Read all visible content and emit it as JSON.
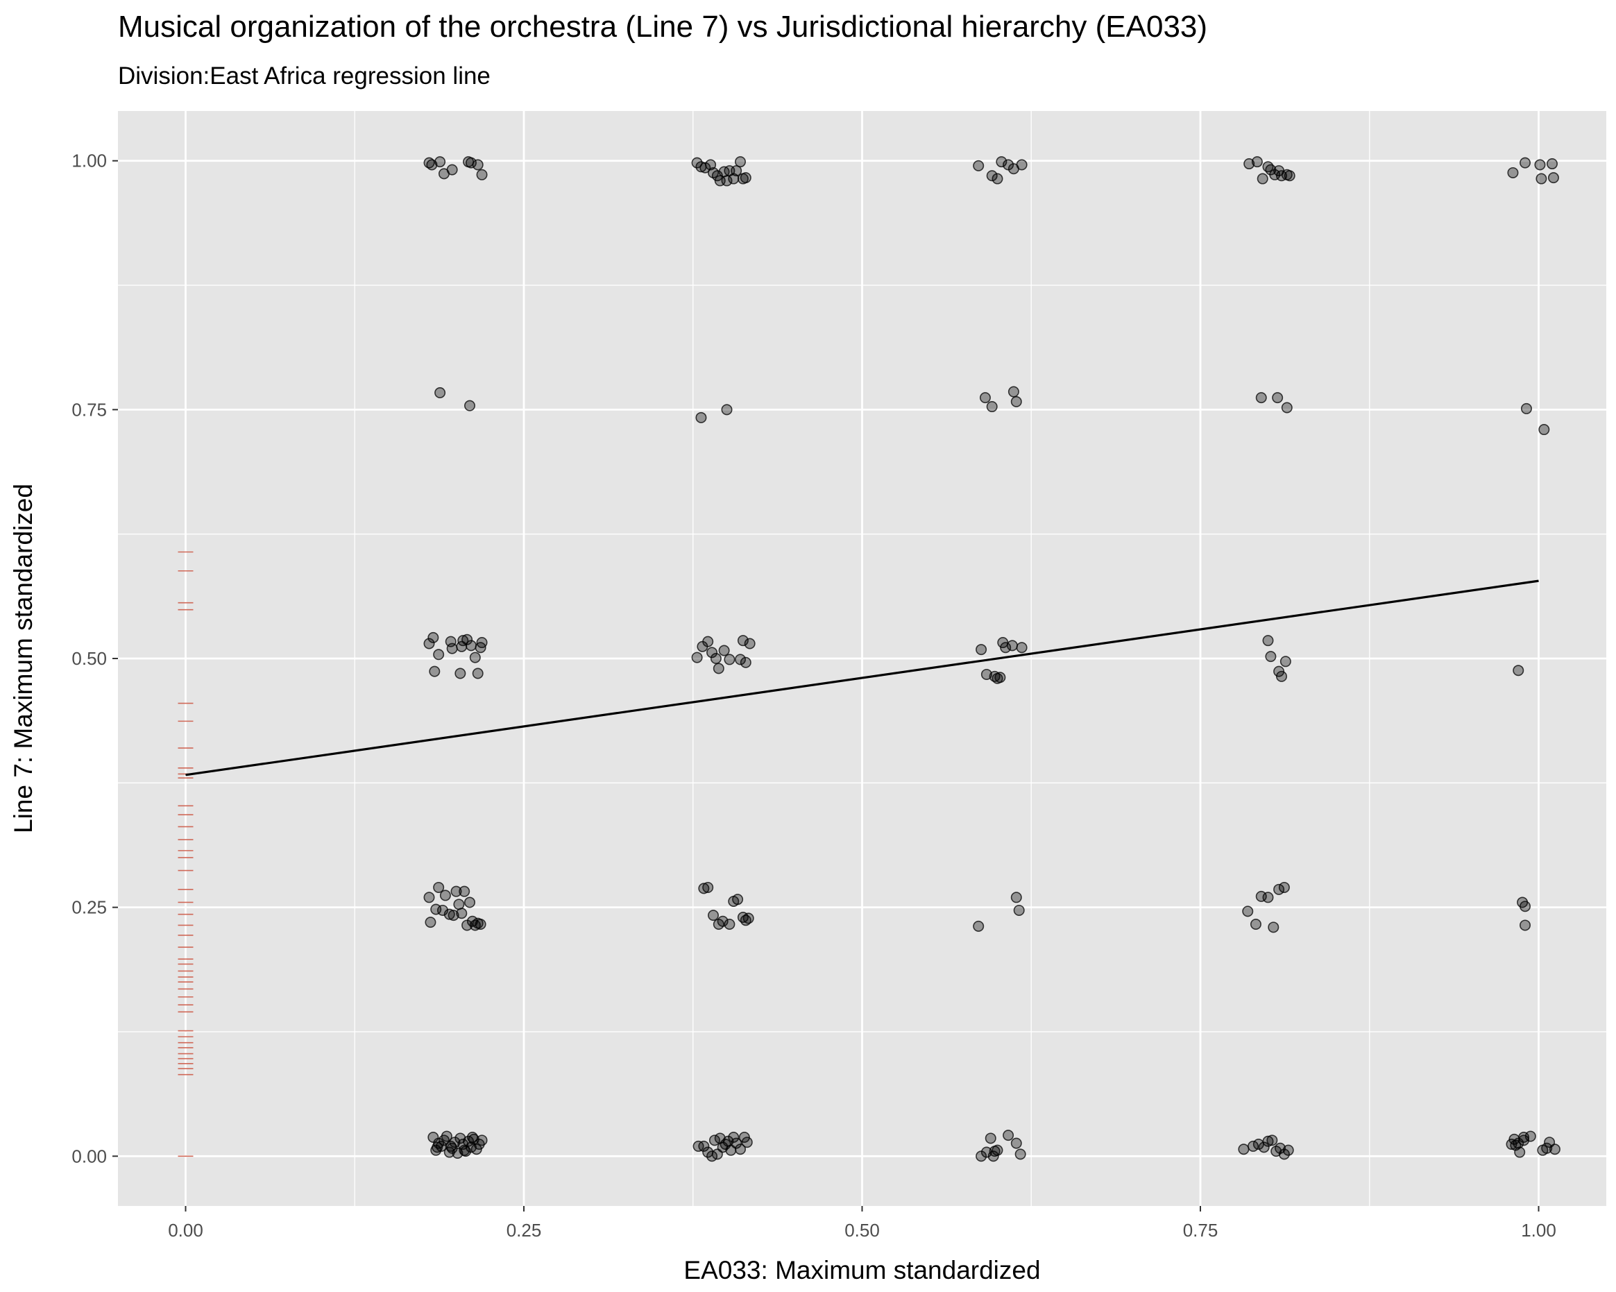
{
  "chart_data": {
    "type": "scatter",
    "title": "Musical organization of the orchestra (Line 7) vs Jurisdictional hierarchy (EA033)",
    "subtitle": "Division:East Africa regression line",
    "xlabel": "EA033: Maximum standardized",
    "ylabel": "Line 7: Maximum standardized",
    "xlim": [
      -0.05,
      1.05
    ],
    "ylim": [
      -0.05,
      1.05
    ],
    "x_ticks": [
      "0.00",
      "0.25",
      "0.50",
      "0.75",
      "1.00"
    ],
    "y_ticks": [
      "0.00",
      "0.25",
      "0.50",
      "0.75",
      "1.00"
    ],
    "grid": true,
    "colors": {
      "panel": "#e5e5e5",
      "grid": "#ffffff",
      "points": "#000000",
      "rug": "#cc5a47",
      "line": "#000000"
    },
    "regression_line": {
      "x": [
        0,
        1
      ],
      "y": [
        0.383,
        0.578
      ]
    },
    "rug_x0_y": [
      0.0,
      0.082,
      0.088,
      0.093,
      0.098,
      0.103,
      0.109,
      0.114,
      0.12,
      0.126,
      0.145,
      0.152,
      0.16,
      0.168,
      0.175,
      0.18,
      0.186,
      0.193,
      0.198,
      0.21,
      0.222,
      0.232,
      0.243,
      0.255,
      0.268,
      0.287,
      0.3,
      0.307,
      0.318,
      0.331,
      0.343,
      0.352,
      0.38,
      0.384,
      0.39,
      0.41,
      0.437,
      0.455,
      0.549,
      0.556,
      0.588,
      0.607
    ],
    "series": [
      {
        "x": [
          0.18,
          0.182,
          0.188,
          0.191,
          0.197,
          0.209,
          0.211,
          0.216,
          0.219,
          0.188,
          0.21,
          0.18,
          0.183,
          0.187,
          0.184,
          0.196,
          0.197,
          0.204,
          0.203,
          0.205,
          0.208,
          0.211,
          0.214,
          0.216,
          0.218,
          0.219,
          0.18,
          0.181,
          0.185,
          0.187,
          0.19,
          0.192,
          0.195,
          0.198,
          0.2,
          0.202,
          0.204,
          0.206,
          0.208,
          0.21,
          0.212,
          0.214,
          0.216,
          0.218,
          0.183,
          0.185,
          0.187,
          0.189,
          0.191,
          0.193,
          0.195,
          0.197,
          0.199,
          0.201,
          0.203,
          0.205,
          0.207,
          0.209,
          0.211,
          0.213,
          0.215,
          0.217,
          0.219,
          0.186,
          0.196,
          0.206,
          0.212,
          0.378,
          0.381,
          0.384,
          0.388,
          0.39,
          0.393,
          0.395,
          0.398,
          0.4,
          0.402,
          0.405,
          0.407,
          0.41,
          0.412,
          0.414,
          0.381,
          0.4,
          0.378,
          0.382,
          0.386,
          0.389,
          0.392,
          0.394,
          0.398,
          0.402,
          0.41,
          0.412,
          0.414,
          0.417,
          0.383,
          0.386,
          0.39,
          0.394,
          0.397,
          0.402,
          0.405,
          0.408,
          0.412,
          0.414,
          0.416,
          0.379,
          0.383,
          0.386,
          0.389,
          0.391,
          0.393,
          0.395,
          0.397,
          0.399,
          0.401,
          0.403,
          0.405,
          0.407,
          0.41,
          0.413,
          0.415,
          0.586,
          0.596,
          0.6,
          0.603,
          0.608,
          0.612,
          0.618,
          0.591,
          0.596,
          0.612,
          0.614,
          0.588,
          0.6,
          0.606,
          0.611,
          0.618,
          0.592,
          0.598,
          0.602,
          0.604,
          0.586,
          0.614,
          0.616,
          0.588,
          0.592,
          0.595,
          0.598,
          0.6,
          0.608,
          0.614,
          0.617,
          0.597,
          0.786,
          0.792,
          0.796,
          0.8,
          0.802,
          0.805,
          0.808,
          0.81,
          0.814,
          0.816,
          0.795,
          0.807,
          0.814,
          0.8,
          0.802,
          0.808,
          0.813,
          0.81,
          0.785,
          0.791,
          0.795,
          0.8,
          0.804,
          0.808,
          0.812,
          0.782,
          0.789,
          0.793,
          0.797,
          0.8,
          0.803,
          0.806,
          0.809,
          0.812,
          0.815,
          0.99,
          1.001,
          1.002,
          1.01,
          1.011,
          0.985,
          0.991,
          0.988,
          1.004,
          0.981,
          0.983,
          0.985,
          0.989,
          0.99,
          0.99,
          0.98,
          0.982,
          0.986,
          0.989,
          0.994,
          1.003,
          1.006,
          1.008,
          1.012
        ],
        "y": [
          0.998,
          0.996,
          0.999,
          0.987,
          0.991,
          0.999,
          0.998,
          0.996,
          0.986,
          0.767,
          0.754,
          0.515,
          0.521,
          0.504,
          0.487,
          0.517,
          0.51,
          0.512,
          0.485,
          0.518,
          0.519,
          0.513,
          0.501,
          0.485,
          0.511,
          0.516,
          0.26,
          0.235,
          0.248,
          0.27,
          0.247,
          0.262,
          0.243,
          0.242,
          0.266,
          0.253,
          0.244,
          0.266,
          0.232,
          0.255,
          0.236,
          0.232,
          0.234,
          0.233,
          0.019,
          0.006,
          0.013,
          0.01,
          0.016,
          0.02,
          0.004,
          0.008,
          0.014,
          0.003,
          0.018,
          0.012,
          0.005,
          0.015,
          0.009,
          0.017,
          0.007,
          0.012,
          0.016,
          0.009,
          0.01,
          0.006,
          0.019,
          0.998,
          0.994,
          0.993,
          0.996,
          0.988,
          0.985,
          0.98,
          0.989,
          0.98,
          0.99,
          0.982,
          0.99,
          0.999,
          0.982,
          0.983,
          0.742,
          0.75,
          0.501,
          0.512,
          0.517,
          0.506,
          0.5,
          0.49,
          0.508,
          0.499,
          0.499,
          0.518,
          0.496,
          0.515,
          0.269,
          0.27,
          0.242,
          0.233,
          0.236,
          0.233,
          0.256,
          0.258,
          0.24,
          0.237,
          0.239,
          0.01,
          0.01,
          0.004,
          0.0,
          0.016,
          0.002,
          0.018,
          0.009,
          0.012,
          0.015,
          0.006,
          0.019,
          0.013,
          0.007,
          0.019,
          0.014,
          0.995,
          0.985,
          0.982,
          0.999,
          0.996,
          0.992,
          0.996,
          0.762,
          0.753,
          0.768,
          0.758,
          0.509,
          0.48,
          0.511,
          0.513,
          0.511,
          0.484,
          0.482,
          0.481,
          0.516,
          0.231,
          0.26,
          0.247,
          0.0,
          0.004,
          0.018,
          0.005,
          0.006,
          0.021,
          0.013,
          0.002,
          0.0,
          0.997,
          0.999,
          0.982,
          0.994,
          0.991,
          0.986,
          0.99,
          0.985,
          0.986,
          0.985,
          0.762,
          0.762,
          0.752,
          0.518,
          0.502,
          0.487,
          0.497,
          0.482,
          0.246,
          0.233,
          0.261,
          0.26,
          0.23,
          0.268,
          0.27,
          0.007,
          0.01,
          0.012,
          0.009,
          0.015,
          0.016,
          0.005,
          0.008,
          0.002,
          0.006,
          0.998,
          0.996,
          0.982,
          0.997,
          0.983,
          0.488,
          0.751,
          0.255,
          0.73,
          0.988,
          0.011,
          0.013,
          0.019,
          0.251,
          0.232,
          0.012,
          0.017,
          0.004,
          0.016,
          0.02,
          0.006,
          0.008,
          0.014,
          0.007
        ]
      }
    ]
  }
}
